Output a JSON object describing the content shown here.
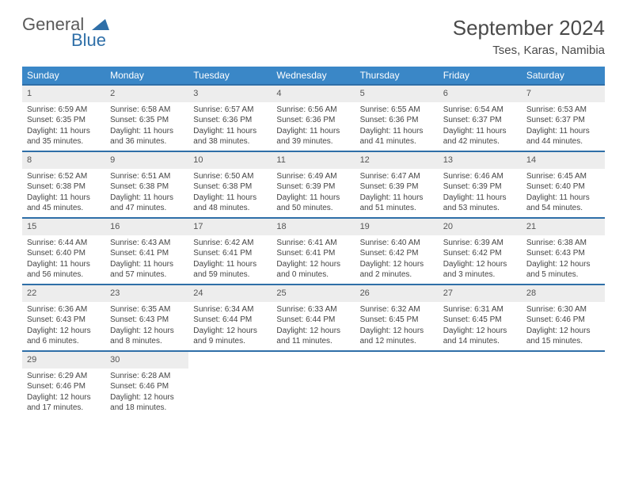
{
  "logo": {
    "word1": "General",
    "word2": "Blue"
  },
  "title": "September 2024",
  "location": "Tses, Karas, Namibia",
  "colors": {
    "header_bg": "#3a87c7",
    "header_border": "#2f6fa8",
    "daynum_bg": "#ededed",
    "text": "#444444",
    "title_text": "#4a4a4a"
  },
  "weekdays": [
    "Sunday",
    "Monday",
    "Tuesday",
    "Wednesday",
    "Thursday",
    "Friday",
    "Saturday"
  ],
  "days": [
    {
      "n": "1",
      "sr": "Sunrise: 6:59 AM",
      "ss": "Sunset: 6:35 PM",
      "dl1": "Daylight: 11 hours",
      "dl2": "and 35 minutes."
    },
    {
      "n": "2",
      "sr": "Sunrise: 6:58 AM",
      "ss": "Sunset: 6:35 PM",
      "dl1": "Daylight: 11 hours",
      "dl2": "and 36 minutes."
    },
    {
      "n": "3",
      "sr": "Sunrise: 6:57 AM",
      "ss": "Sunset: 6:36 PM",
      "dl1": "Daylight: 11 hours",
      "dl2": "and 38 minutes."
    },
    {
      "n": "4",
      "sr": "Sunrise: 6:56 AM",
      "ss": "Sunset: 6:36 PM",
      "dl1": "Daylight: 11 hours",
      "dl2": "and 39 minutes."
    },
    {
      "n": "5",
      "sr": "Sunrise: 6:55 AM",
      "ss": "Sunset: 6:36 PM",
      "dl1": "Daylight: 11 hours",
      "dl2": "and 41 minutes."
    },
    {
      "n": "6",
      "sr": "Sunrise: 6:54 AM",
      "ss": "Sunset: 6:37 PM",
      "dl1": "Daylight: 11 hours",
      "dl2": "and 42 minutes."
    },
    {
      "n": "7",
      "sr": "Sunrise: 6:53 AM",
      "ss": "Sunset: 6:37 PM",
      "dl1": "Daylight: 11 hours",
      "dl2": "and 44 minutes."
    },
    {
      "n": "8",
      "sr": "Sunrise: 6:52 AM",
      "ss": "Sunset: 6:38 PM",
      "dl1": "Daylight: 11 hours",
      "dl2": "and 45 minutes."
    },
    {
      "n": "9",
      "sr": "Sunrise: 6:51 AM",
      "ss": "Sunset: 6:38 PM",
      "dl1": "Daylight: 11 hours",
      "dl2": "and 47 minutes."
    },
    {
      "n": "10",
      "sr": "Sunrise: 6:50 AM",
      "ss": "Sunset: 6:38 PM",
      "dl1": "Daylight: 11 hours",
      "dl2": "and 48 minutes."
    },
    {
      "n": "11",
      "sr": "Sunrise: 6:49 AM",
      "ss": "Sunset: 6:39 PM",
      "dl1": "Daylight: 11 hours",
      "dl2": "and 50 minutes."
    },
    {
      "n": "12",
      "sr": "Sunrise: 6:47 AM",
      "ss": "Sunset: 6:39 PM",
      "dl1": "Daylight: 11 hours",
      "dl2": "and 51 minutes."
    },
    {
      "n": "13",
      "sr": "Sunrise: 6:46 AM",
      "ss": "Sunset: 6:39 PM",
      "dl1": "Daylight: 11 hours",
      "dl2": "and 53 minutes."
    },
    {
      "n": "14",
      "sr": "Sunrise: 6:45 AM",
      "ss": "Sunset: 6:40 PM",
      "dl1": "Daylight: 11 hours",
      "dl2": "and 54 minutes."
    },
    {
      "n": "15",
      "sr": "Sunrise: 6:44 AM",
      "ss": "Sunset: 6:40 PM",
      "dl1": "Daylight: 11 hours",
      "dl2": "and 56 minutes."
    },
    {
      "n": "16",
      "sr": "Sunrise: 6:43 AM",
      "ss": "Sunset: 6:41 PM",
      "dl1": "Daylight: 11 hours",
      "dl2": "and 57 minutes."
    },
    {
      "n": "17",
      "sr": "Sunrise: 6:42 AM",
      "ss": "Sunset: 6:41 PM",
      "dl1": "Daylight: 11 hours",
      "dl2": "and 59 minutes."
    },
    {
      "n": "18",
      "sr": "Sunrise: 6:41 AM",
      "ss": "Sunset: 6:41 PM",
      "dl1": "Daylight: 12 hours",
      "dl2": "and 0 minutes."
    },
    {
      "n": "19",
      "sr": "Sunrise: 6:40 AM",
      "ss": "Sunset: 6:42 PM",
      "dl1": "Daylight: 12 hours",
      "dl2": "and 2 minutes."
    },
    {
      "n": "20",
      "sr": "Sunrise: 6:39 AM",
      "ss": "Sunset: 6:42 PM",
      "dl1": "Daylight: 12 hours",
      "dl2": "and 3 minutes."
    },
    {
      "n": "21",
      "sr": "Sunrise: 6:38 AM",
      "ss": "Sunset: 6:43 PM",
      "dl1": "Daylight: 12 hours",
      "dl2": "and 5 minutes."
    },
    {
      "n": "22",
      "sr": "Sunrise: 6:36 AM",
      "ss": "Sunset: 6:43 PM",
      "dl1": "Daylight: 12 hours",
      "dl2": "and 6 minutes."
    },
    {
      "n": "23",
      "sr": "Sunrise: 6:35 AM",
      "ss": "Sunset: 6:43 PM",
      "dl1": "Daylight: 12 hours",
      "dl2": "and 8 minutes."
    },
    {
      "n": "24",
      "sr": "Sunrise: 6:34 AM",
      "ss": "Sunset: 6:44 PM",
      "dl1": "Daylight: 12 hours",
      "dl2": "and 9 minutes."
    },
    {
      "n": "25",
      "sr": "Sunrise: 6:33 AM",
      "ss": "Sunset: 6:44 PM",
      "dl1": "Daylight: 12 hours",
      "dl2": "and 11 minutes."
    },
    {
      "n": "26",
      "sr": "Sunrise: 6:32 AM",
      "ss": "Sunset: 6:45 PM",
      "dl1": "Daylight: 12 hours",
      "dl2": "and 12 minutes."
    },
    {
      "n": "27",
      "sr": "Sunrise: 6:31 AM",
      "ss": "Sunset: 6:45 PM",
      "dl1": "Daylight: 12 hours",
      "dl2": "and 14 minutes."
    },
    {
      "n": "28",
      "sr": "Sunrise: 6:30 AM",
      "ss": "Sunset: 6:46 PM",
      "dl1": "Daylight: 12 hours",
      "dl2": "and 15 minutes."
    },
    {
      "n": "29",
      "sr": "Sunrise: 6:29 AM",
      "ss": "Sunset: 6:46 PM",
      "dl1": "Daylight: 12 hours",
      "dl2": "and 17 minutes."
    },
    {
      "n": "30",
      "sr": "Sunrise: 6:28 AM",
      "ss": "Sunset: 6:46 PM",
      "dl1": "Daylight: 12 hours",
      "dl2": "and 18 minutes."
    }
  ]
}
